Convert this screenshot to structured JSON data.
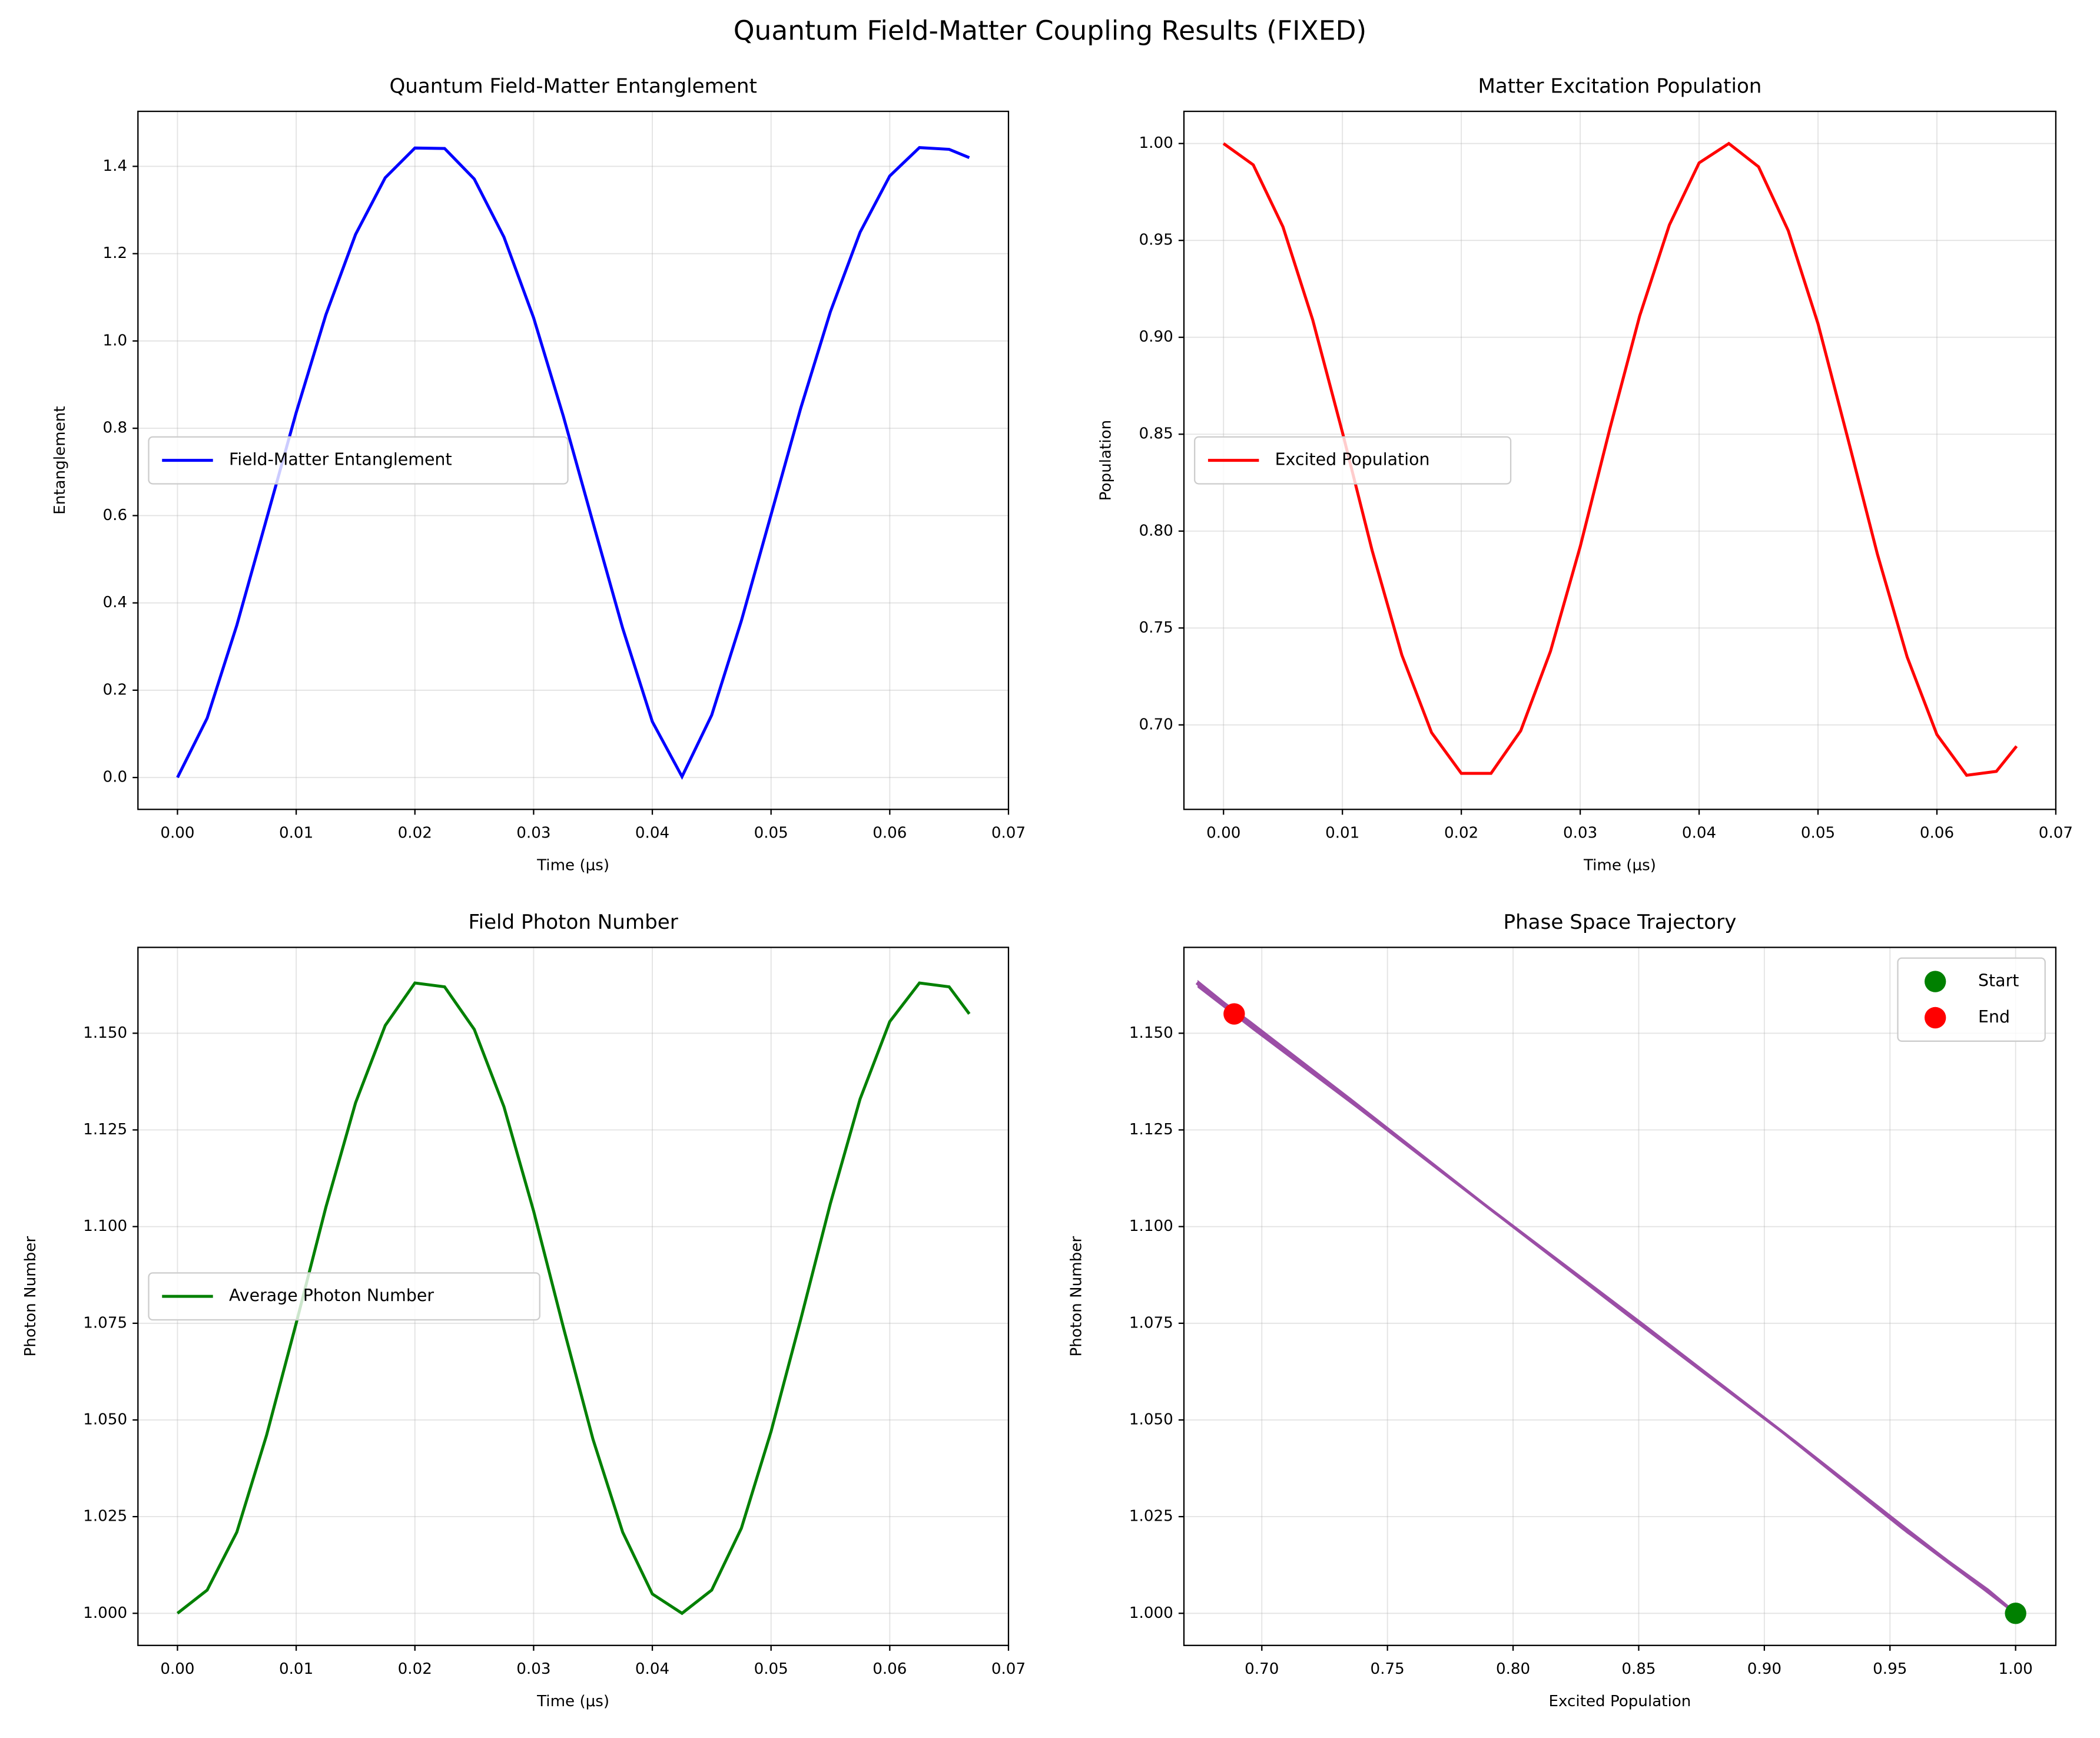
{
  "title": "Quantum Field-Matter Coupling Results (FIXED)",
  "chart_data": [
    {
      "type": "line",
      "title": "Quantum Field-Matter Entanglement",
      "xlabel": "Time (μs)",
      "ylabel": "Entanglement",
      "x": [
        0,
        0.0025,
        0.005,
        0.0075,
        0.01,
        0.0125,
        0.015,
        0.0175,
        0.02,
        0.0225,
        0.025,
        0.0275,
        0.03,
        0.0325,
        0.035,
        0.0375,
        0.04,
        0.0425,
        0.045,
        0.0475,
        0.05,
        0.0525,
        0.055,
        0.0575,
        0.06,
        0.0625,
        0.065,
        0.0667
      ],
      "series": [
        {
          "name": "Field-Matter Entanglement",
          "color": "#0000ff",
          "values": [
            0,
            0.136,
            0.349,
            0.592,
            0.836,
            1.06,
            1.244,
            1.374,
            1.442,
            1.441,
            1.371,
            1.238,
            1.053,
            0.828,
            0.584,
            0.342,
            0.128,
            0.002,
            0.143,
            0.359,
            0.602,
            0.846,
            1.067,
            1.249,
            1.378,
            1.443,
            1.439,
            1.42
          ]
        }
      ],
      "xlim": [
        -0.00333,
        0.07
      ],
      "xticks": [
        {
          "value": 0,
          "label": "0.00"
        },
        0.01,
        0.02,
        0.03,
        0.04,
        0.05,
        0.06,
        0.07
      ],
      "ylim": [
        -0.073,
        1.526
      ],
      "yticks": [
        {
          "value": 0,
          "label": "0.0"
        },
        0.2,
        0.4,
        0.6,
        0.8,
        {
          "value": 1,
          "label": "1.0"
        },
        1.2,
        1.4
      ],
      "grid": true,
      "legend": "center left"
    },
    {
      "type": "line",
      "title": "Matter Excitation Population",
      "xlabel": "Time (μs)",
      "ylabel": "Population",
      "x": [
        0,
        0.0025,
        0.005,
        0.0075,
        0.01,
        0.0125,
        0.015,
        0.0175,
        0.02,
        0.0225,
        0.025,
        0.0275,
        0.03,
        0.0325,
        0.035,
        0.0375,
        0.04,
        0.0425,
        0.045,
        0.0475,
        0.05,
        0.0525,
        0.055,
        0.0575,
        0.06,
        0.0625,
        0.065,
        0.0667
      ],
      "series": [
        {
          "name": "Excited Population",
          "color": "#ff0000",
          "values": [
            1.0,
            0.989,
            0.957,
            0.909,
            0.851,
            0.79,
            0.736,
            0.696,
            0.675,
            0.675,
            0.697,
            0.738,
            0.792,
            0.853,
            0.911,
            0.958,
            0.99,
            1.0,
            0.988,
            0.955,
            0.907,
            0.848,
            0.788,
            0.735,
            0.695,
            0.674,
            0.676,
            0.689
          ]
        }
      ],
      "xlim": [
        -0.00333,
        0.07
      ],
      "xticks": [
        {
          "value": 0,
          "label": "0.00"
        },
        0.01,
        0.02,
        0.03,
        0.04,
        0.05,
        0.06,
        0.07
      ],
      "ylim": [
        0.6564,
        1.0166
      ],
      "yticks": [
        {
          "value": 0.7,
          "label": "0.70"
        },
        0.75,
        {
          "value": 0.8,
          "label": "0.80"
        },
        0.85,
        {
          "value": 0.9,
          "label": "0.90"
        },
        0.95,
        {
          "value": 1,
          "label": "1.00"
        }
      ],
      "grid": true,
      "legend": "center left"
    },
    {
      "type": "line",
      "title": "Field Photon Number",
      "xlabel": "Time (μs)",
      "ylabel": "Photon Number",
      "x": [
        0,
        0.0025,
        0.005,
        0.0075,
        0.01,
        0.0125,
        0.015,
        0.0175,
        0.02,
        0.0225,
        0.025,
        0.0275,
        0.03,
        0.0325,
        0.035,
        0.0375,
        0.04,
        0.0425,
        0.045,
        0.0475,
        0.05,
        0.0525,
        0.055,
        0.0575,
        0.06,
        0.0625,
        0.065,
        0.0667
      ],
      "series": [
        {
          "name": "Average Photon Number",
          "color": "#008000",
          "values": [
            1.0,
            1.006,
            1.021,
            1.046,
            1.075,
            1.105,
            1.132,
            1.152,
            1.163,
            1.162,
            1.151,
            1.131,
            1.104,
            1.074,
            1.045,
            1.021,
            1.005,
            1.0,
            1.006,
            1.022,
            1.047,
            1.076,
            1.106,
            1.133,
            1.153,
            1.163,
            1.162,
            1.155
          ]
        }
      ],
      "xlim": [
        -0.00333,
        0.07
      ],
      "xticks": [
        {
          "value": 0,
          "label": "0.00"
        },
        0.01,
        0.02,
        0.03,
        0.04,
        0.05,
        0.06,
        0.07
      ],
      "ylim": [
        0.9917,
        1.1722
      ],
      "yticks": [
        {
          "value": 1,
          "label": "1.000"
        },
        1.025,
        {
          "value": 1.05,
          "label": "1.050"
        },
        1.075,
        {
          "value": 1.1,
          "label": "1.100"
        },
        1.125,
        {
          "value": 1.15,
          "label": "1.150"
        }
      ],
      "grid": true,
      "legend": "center left"
    },
    {
      "type": "scatter",
      "title": "Phase Space Trajectory",
      "xlabel": "Excited Population",
      "ylabel": "Photon Number",
      "series": [
        {
          "style": "line",
          "color": "#9b4ea6",
          "x": [
            1.0,
            0.989,
            0.957,
            0.909,
            0.851,
            0.79,
            0.736,
            0.696,
            0.675,
            0.675,
            0.697,
            0.738,
            0.792,
            0.853,
            0.911,
            0.958,
            0.99,
            1.0,
            0.988,
            0.955,
            0.907,
            0.848,
            0.788,
            0.735,
            0.695,
            0.674,
            0.676,
            0.689
          ],
          "values": [
            1.0,
            1.006,
            1.021,
            1.046,
            1.075,
            1.105,
            1.132,
            1.152,
            1.163,
            1.162,
            1.151,
            1.131,
            1.104,
            1.074,
            1.045,
            1.021,
            1.005,
            1.0,
            1.006,
            1.022,
            1.047,
            1.076,
            1.106,
            1.133,
            1.153,
            1.163,
            1.162,
            1.155
          ]
        },
        {
          "name": "Start",
          "style": "marker",
          "color": "#008000",
          "x": [
            1.0
          ],
          "values": [
            1.0
          ]
        },
        {
          "name": "End",
          "style": "marker",
          "color": "#ff0000",
          "x": [
            0.689
          ],
          "values": [
            1.155
          ]
        }
      ],
      "xlim": [
        0.669,
        1.016
      ],
      "xticks": [
        {
          "value": 0.7,
          "label": "0.70"
        },
        0.75,
        {
          "value": 0.8,
          "label": "0.80"
        },
        0.85,
        {
          "value": 0.9,
          "label": "0.90"
        },
        0.95,
        {
          "value": 1,
          "label": "1.00"
        }
      ],
      "ylim": [
        0.9917,
        1.1722
      ],
      "yticks": [
        {
          "value": 1,
          "label": "1.000"
        },
        1.025,
        {
          "value": 1.05,
          "label": "1.050"
        },
        1.075,
        {
          "value": 1.1,
          "label": "1.100"
        },
        1.125,
        {
          "value": 1.15,
          "label": "1.150"
        }
      ],
      "grid": true,
      "legend": "upper right"
    }
  ]
}
